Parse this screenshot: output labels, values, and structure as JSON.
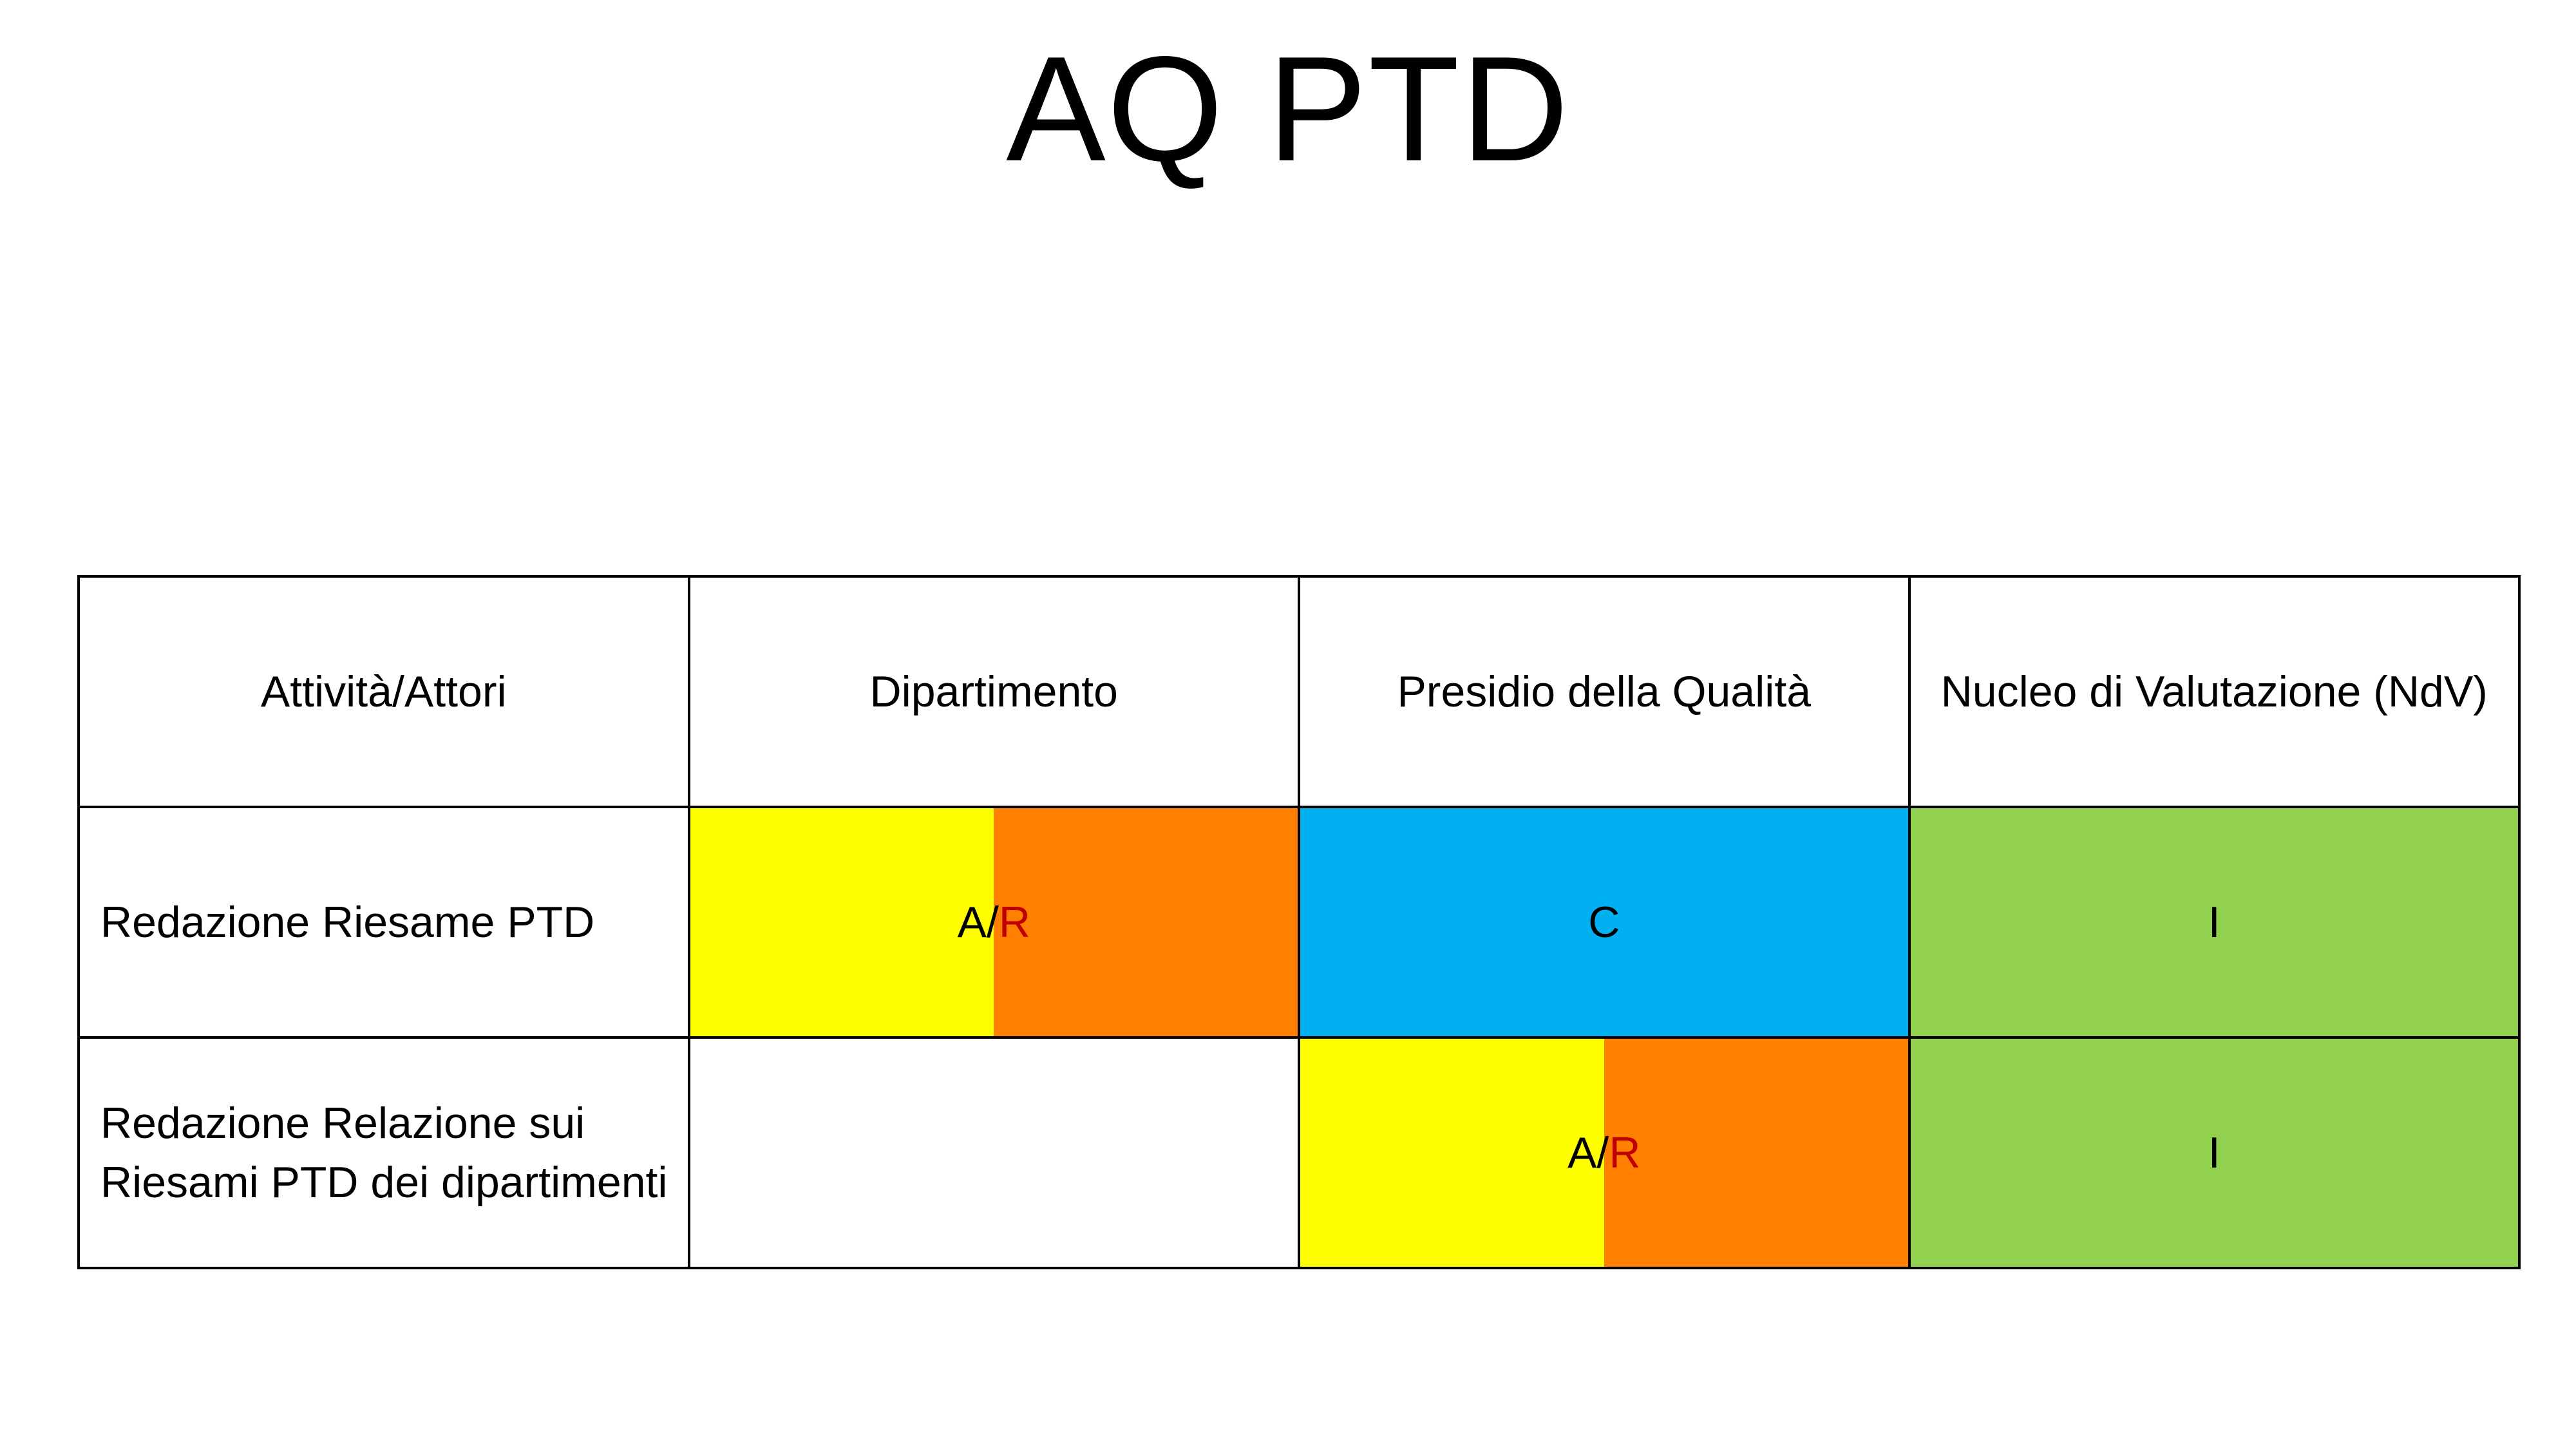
{
  "title": "AQ PTD",
  "colors": {
    "accountable": "#ffff00",
    "responsible": "#ff8000",
    "consulted": "#00b0f0",
    "informed": "#92d050",
    "r_text": "#c00000"
  },
  "table": {
    "headers": [
      "Attività/Attori",
      "Dipartimento",
      "Presidio della Qualità",
      "Nucleo di Valutazione (NdV)"
    ],
    "rows": [
      {
        "label_lines": [
          "Redazione Riesame PTD"
        ],
        "dipartimento": {
          "a": "A",
          "sep": "/",
          "r": "R"
        },
        "presidio": "C",
        "nucleo": "I"
      },
      {
        "label_lines": [
          "Redazione Relazione sui",
          "Riesami PTD dei dipartimenti"
        ],
        "dipartimento": "",
        "presidio": {
          "a": "A",
          "sep": "/",
          "r": "R"
        },
        "nucleo": "I"
      }
    ]
  }
}
